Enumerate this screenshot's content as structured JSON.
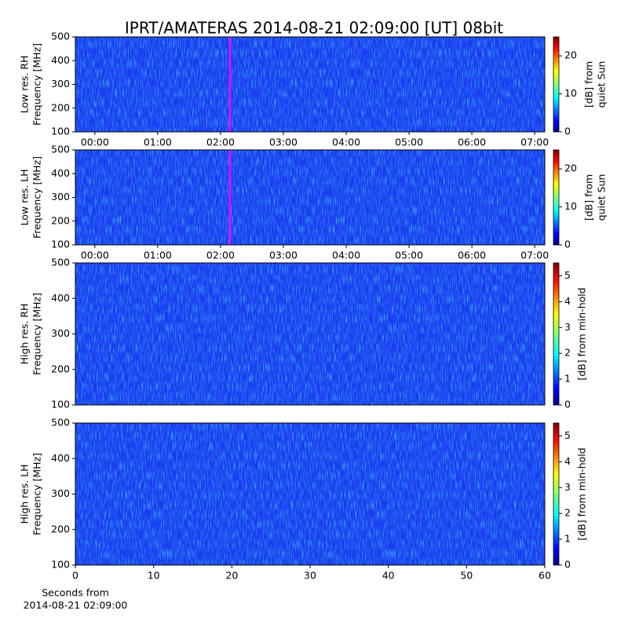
{
  "chart_data": [
    {
      "type": "spectrogram",
      "title": "IPRT/AMATERAS 2014-08-21 02:09:00 [UT]   08bit",
      "ylabel": [
        "Low res. RH",
        "Frequency [MHz]"
      ],
      "xlim": [
        -0.31,
        7.16
      ],
      "xticks": [
        {
          "value": 0,
          "label": "00:00"
        },
        {
          "value": 1,
          "label": "01:00"
        },
        {
          "value": 2,
          "label": "02:00"
        },
        {
          "value": 3,
          "label": "03:00"
        },
        {
          "value": 4,
          "label": "04:00"
        },
        {
          "value": 5,
          "label": "05:00"
        },
        {
          "value": 6,
          "label": "06:00"
        },
        {
          "value": 7,
          "label": "07:00"
        }
      ],
      "ylim": [
        100,
        500
      ],
      "yticks": [
        100,
        200,
        300,
        400,
        500
      ],
      "marker": {
        "x": 2.15,
        "color": "#ff00ff"
      },
      "colorbar": {
        "label": [
          "[dB] from",
          "quiet Sun"
        ],
        "lim": [
          0,
          25
        ],
        "ticks": [
          0,
          10,
          20
        ],
        "colormap": "jet"
      }
    },
    {
      "type": "spectrogram",
      "ylabel": [
        "Low res. LH",
        "Frequency [MHz]"
      ],
      "xlim": [
        -0.31,
        7.16
      ],
      "xticks": [
        {
          "value": 0,
          "label": "00:00"
        },
        {
          "value": 1,
          "label": "01:00"
        },
        {
          "value": 2,
          "label": "02:00"
        },
        {
          "value": 3,
          "label": "03:00"
        },
        {
          "value": 4,
          "label": "04:00"
        },
        {
          "value": 5,
          "label": "05:00"
        },
        {
          "value": 6,
          "label": "06:00"
        },
        {
          "value": 7,
          "label": "07:00"
        }
      ],
      "ylim": [
        100,
        500
      ],
      "yticks": [
        100,
        200,
        300,
        400,
        500
      ],
      "marker": {
        "x": 2.15,
        "color": "#ff00ff"
      },
      "colorbar": {
        "label": [
          "[dB] from",
          "quiet Sun"
        ],
        "lim": [
          0,
          25
        ],
        "ticks": [
          0,
          10,
          20
        ],
        "colormap": "jet"
      }
    },
    {
      "type": "spectrogram",
      "ylabel": [
        "High res. RH",
        "Frequency [MHz]"
      ],
      "xlim": [
        0,
        60
      ],
      "ylim": [
        100,
        500
      ],
      "yticks": [
        100,
        200,
        300,
        400,
        500
      ],
      "colorbar": {
        "label": [
          "[dB] from min-hold"
        ],
        "lim": [
          0,
          5.5
        ],
        "ticks": [
          0,
          1,
          2,
          3,
          4,
          5
        ],
        "colormap": "jet"
      }
    },
    {
      "type": "spectrogram",
      "ylabel": [
        "High res. LH",
        "Frequency [MHz]"
      ],
      "xlim": [
        0,
        60
      ],
      "xticks": [
        0,
        10,
        20,
        30,
        40,
        50,
        60
      ],
      "xlabel": [
        "Seconds from",
        "2014-08-21 02:09:00"
      ],
      "ylim": [
        100,
        500
      ],
      "yticks": [
        100,
        200,
        300,
        400,
        500
      ],
      "colorbar": {
        "label": [
          "[dB] from min-hold"
        ],
        "lim": [
          0,
          5.5
        ],
        "ticks": [
          0,
          1,
          2,
          3,
          4,
          5
        ],
        "colormap": "jet"
      }
    }
  ]
}
